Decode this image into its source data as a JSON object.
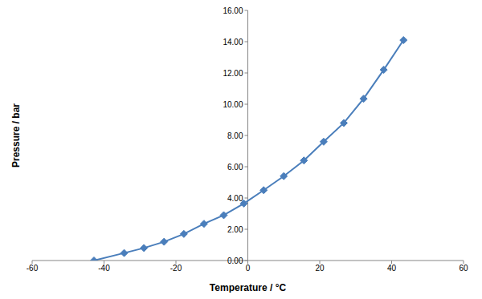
{
  "chart_data": {
    "type": "line",
    "x_label": "Temperature / °C",
    "y_label": "Pressure / bar",
    "x": [
      -42.8,
      -34.4,
      -28.9,
      -23.3,
      -17.8,
      -12.2,
      -6.7,
      -1.1,
      4.4,
      10.0,
      15.6,
      21.1,
      26.7,
      32.2,
      37.8,
      43.3
    ],
    "values": [
      0,
      0.48,
      0.8,
      1.2,
      1.7,
      2.35,
      2.9,
      3.65,
      4.5,
      5.4,
      6.4,
      7.6,
      8.8,
      10.35,
      12.2,
      14.1
    ],
    "color": "#4a7ebb",
    "marker": "diamond",
    "xlim": [
      -60,
      60
    ],
    "xticks": [
      -60,
      -40,
      -20,
      0,
      20,
      40,
      60
    ],
    "ylim": [
      0,
      16
    ],
    "yticks": [
      {
        "value": 0,
        "label": "0.00"
      },
      {
        "value": 2,
        "label": "2.00"
      },
      {
        "value": 4,
        "label": "4.00"
      },
      {
        "value": 6,
        "label": "6.00"
      },
      {
        "value": 8,
        "label": "8.00"
      },
      {
        "value": 10,
        "label": "10.00"
      },
      {
        "value": 12,
        "label": "12.00"
      },
      {
        "value": 14,
        "label": "14.00"
      },
      {
        "value": 16,
        "label": "16.00"
      }
    ],
    "grid": false
  }
}
